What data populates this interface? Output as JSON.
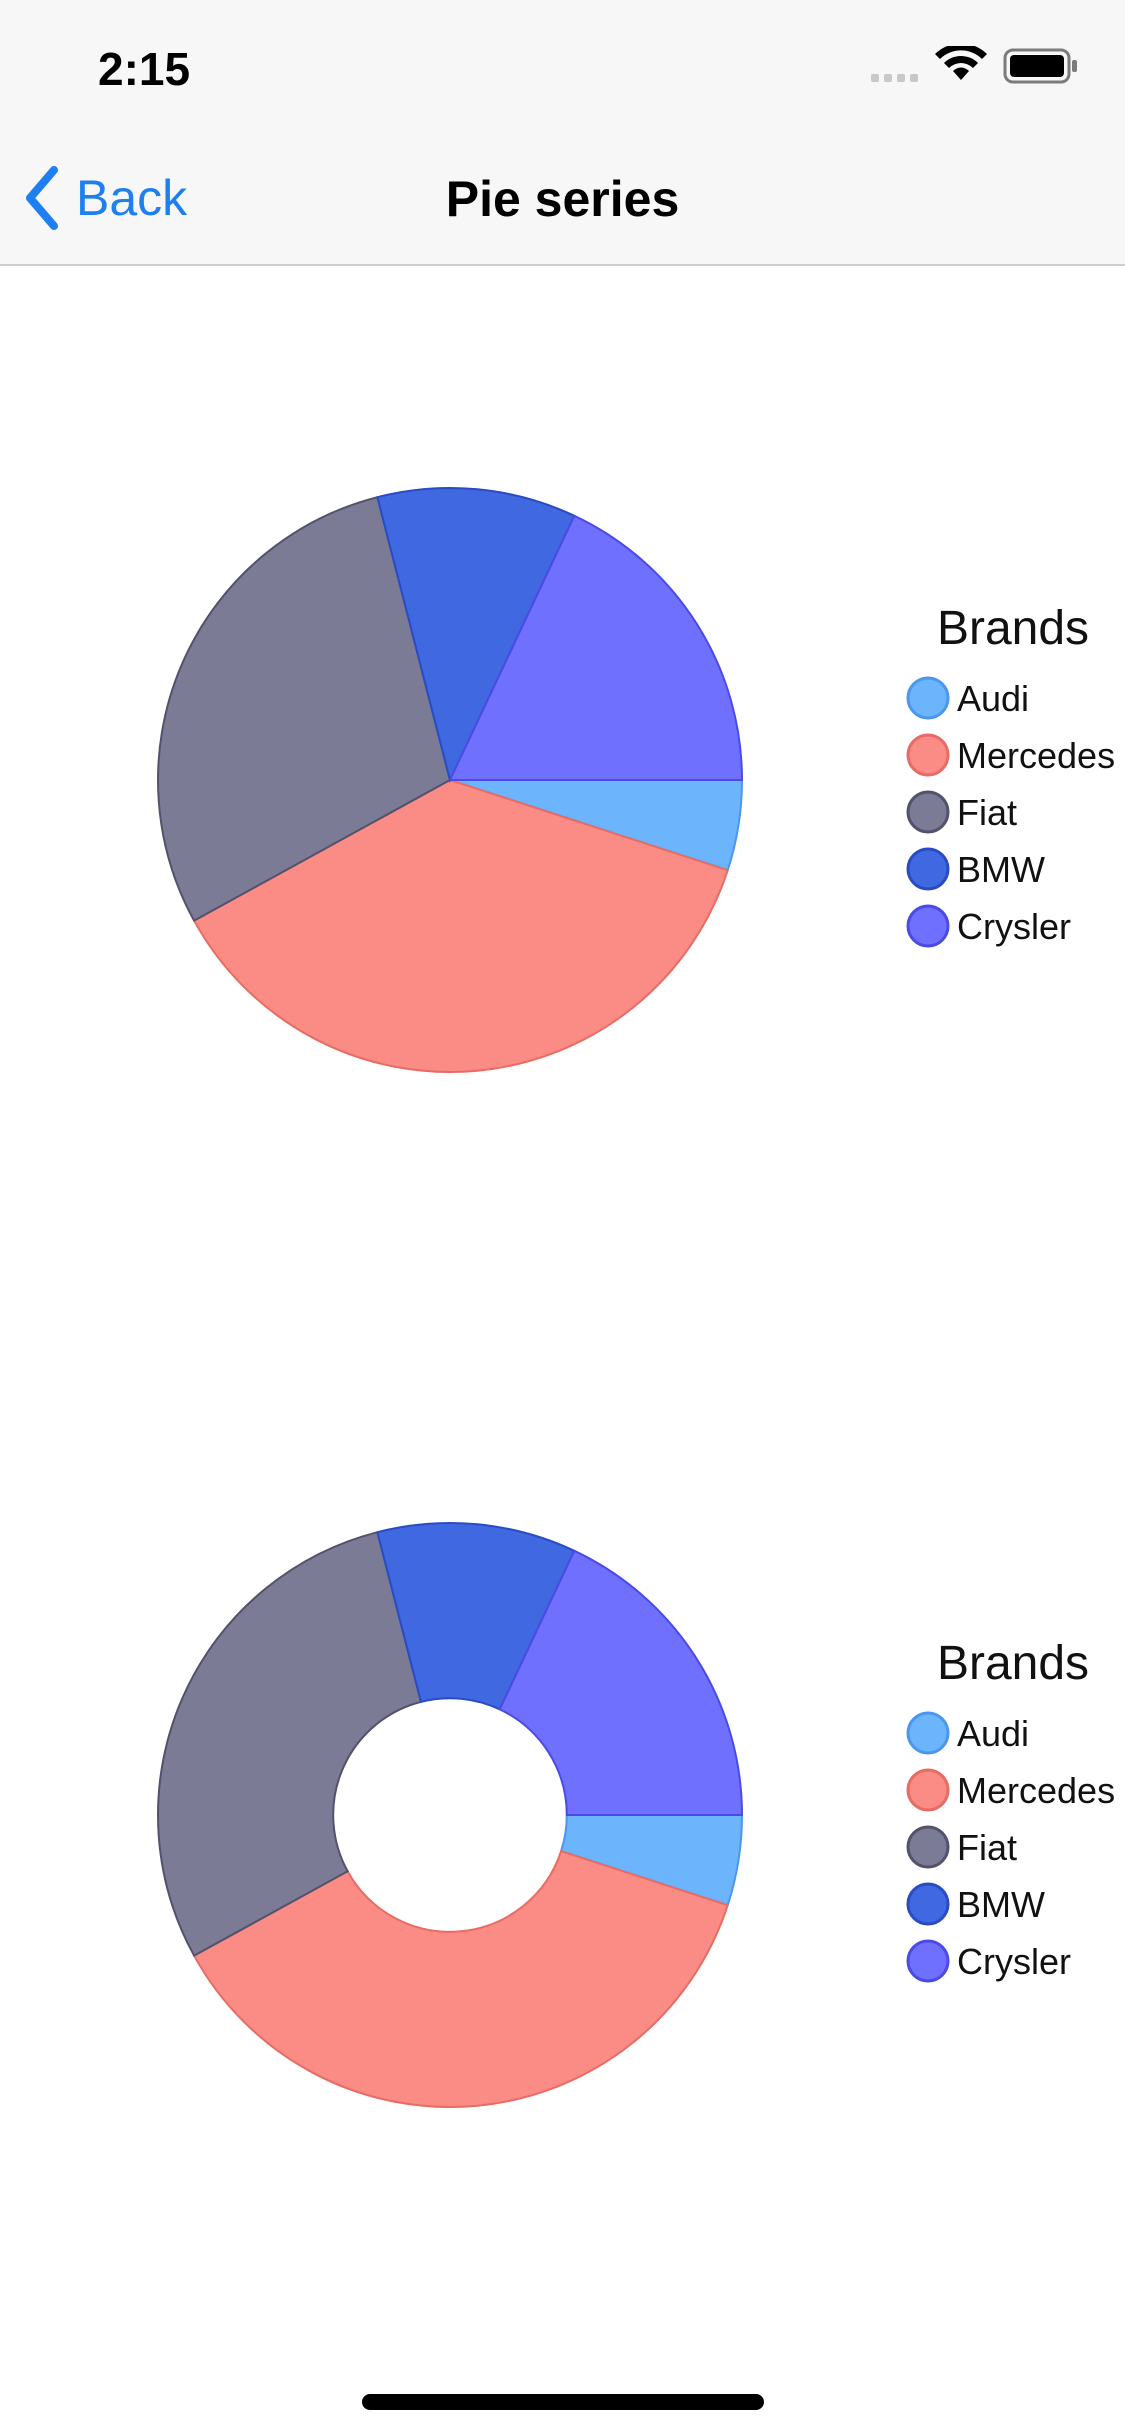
{
  "status_bar": {
    "time": "2:15"
  },
  "nav": {
    "back_label": "Back",
    "title": "Pie series"
  },
  "chart_data": [
    {
      "type": "pie",
      "title": "Brands",
      "categories": [
        "Audi",
        "Mercedes",
        "Fiat",
        "BMW",
        "Crysler"
      ],
      "values": [
        5,
        37,
        29,
        11,
        18
      ],
      "colors": [
        "#6cb4fb",
        "#fa8c85",
        "#7b7b96",
        "#4068e0",
        "#7070ff"
      ],
      "stroke_colors": [
        "#4a97f0",
        "#e86b64",
        "#52526c",
        "#2a4bc4",
        "#4a4ae8"
      ],
      "hole": 0,
      "legend_position": "right"
    },
    {
      "type": "pie",
      "title": "Brands",
      "categories": [
        "Audi",
        "Mercedes",
        "Fiat",
        "BMW",
        "Crysler"
      ],
      "values": [
        5,
        37,
        29,
        11,
        18
      ],
      "colors": [
        "#6cb4fb",
        "#fa8c85",
        "#7b7b96",
        "#4068e0",
        "#7070ff"
      ],
      "stroke_colors": [
        "#4a97f0",
        "#e86b64",
        "#52526c",
        "#2a4bc4",
        "#4a4ae8"
      ],
      "hole": 0.4,
      "legend_position": "right"
    }
  ]
}
